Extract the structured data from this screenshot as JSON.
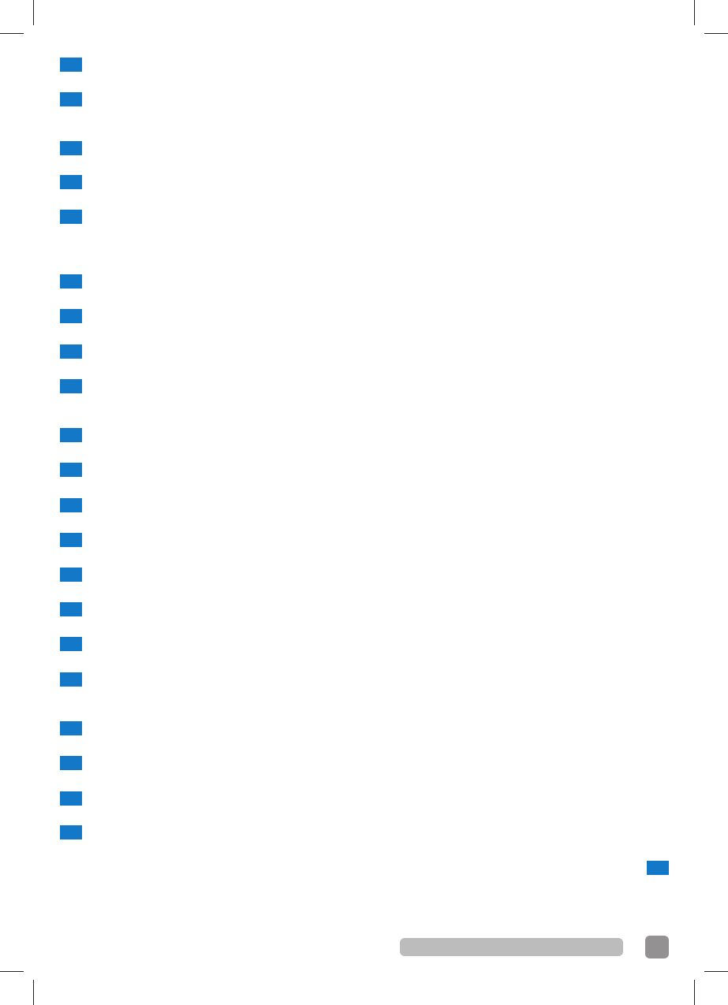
{
  "colors": {
    "marker": "#1378c8",
    "footer_bar": "#bcbcbc",
    "page_tab": "#939192",
    "crop_marks": "#222222"
  },
  "markers": {
    "left_count": 21,
    "right_count": 1
  }
}
